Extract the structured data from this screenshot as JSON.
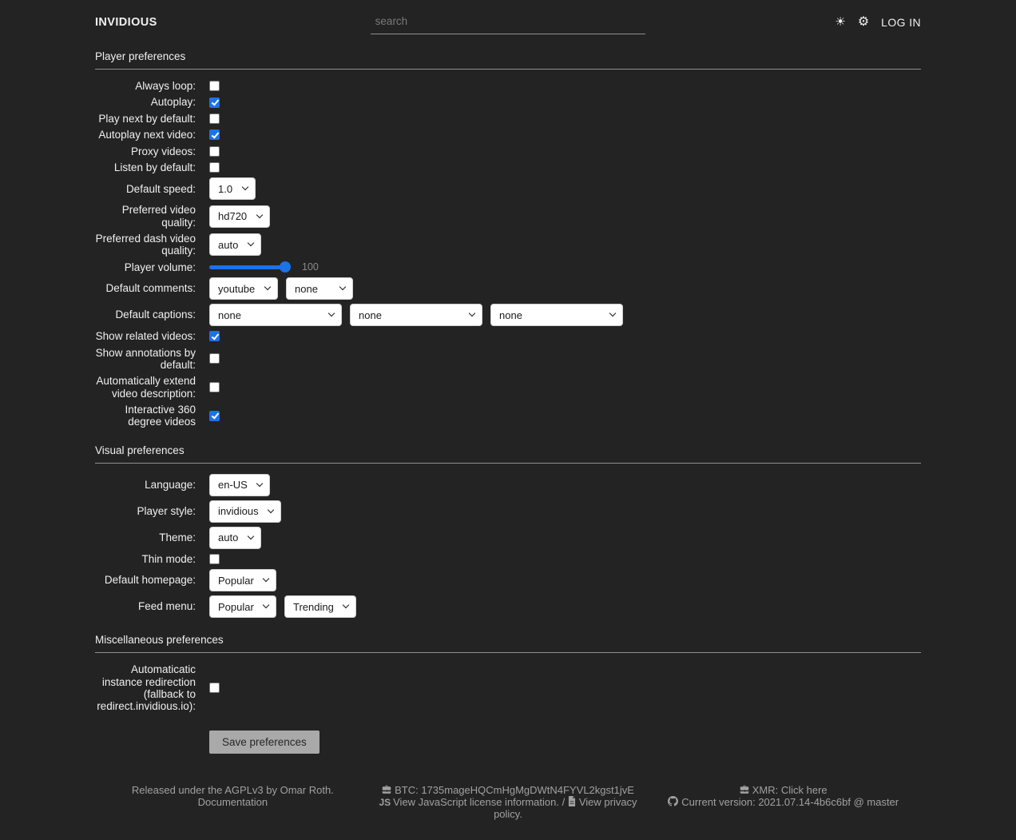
{
  "colors": {
    "background": "#232323",
    "text": "#f0f0f0",
    "muted_text": "#a1a1a1",
    "accent_blue": "#1a73e8",
    "control_bg": "#ffffff"
  },
  "header": {
    "logo": "INVIDIOUS",
    "search_placeholder": "search",
    "login_label": "LOG IN",
    "icons": {
      "theme_toggle": {
        "name": "sun-icon",
        "glyph": "☀"
      },
      "preferences": {
        "name": "gear-icon",
        "glyph": "⚙"
      }
    }
  },
  "sections": [
    {
      "id": "player",
      "heading": "Player preferences",
      "rows": [
        {
          "id": "always-loop",
          "label": "Always loop:",
          "type": "checkbox",
          "checked": false
        },
        {
          "id": "autoplay",
          "label": "Autoplay:",
          "type": "checkbox",
          "checked": true
        },
        {
          "id": "play-next",
          "label": "Play next by default:",
          "type": "checkbox",
          "checked": false
        },
        {
          "id": "autoplay-next",
          "label": "Autoplay next video:",
          "type": "checkbox",
          "checked": true
        },
        {
          "id": "proxy-videos",
          "label": "Proxy videos:",
          "type": "checkbox",
          "checked": false
        },
        {
          "id": "listen-default",
          "label": "Listen by default:",
          "type": "checkbox",
          "checked": false
        },
        {
          "id": "default-speed",
          "label": "Default speed:",
          "type": "selects",
          "values": [
            "1.0"
          ]
        },
        {
          "id": "preferred-quality",
          "label": "Preferred video quality:",
          "type": "selects",
          "values": [
            "hd720"
          ]
        },
        {
          "id": "preferred-dash-quality",
          "label": "Preferred dash video quality:",
          "type": "selects",
          "values": [
            "auto"
          ]
        },
        {
          "id": "player-volume",
          "label": "Player volume:",
          "type": "slider",
          "value": 100,
          "min": 0,
          "max": 100,
          "value_label": "100"
        },
        {
          "id": "default-comments",
          "label": "Default comments:",
          "type": "selects",
          "values": [
            "youtube",
            "none"
          ]
        },
        {
          "id": "default-captions",
          "label": "Default captions:",
          "type": "selects",
          "values": [
            "none",
            "none",
            "none"
          ]
        },
        {
          "id": "related-videos",
          "label": "Show related videos:",
          "type": "checkbox",
          "checked": true
        },
        {
          "id": "annotations",
          "label": "Show annotations by default:",
          "type": "checkbox",
          "checked": false
        },
        {
          "id": "extend-desc",
          "label": "Automatically extend video description:",
          "type": "checkbox",
          "checked": false
        },
        {
          "id": "vr-mode",
          "label": "Interactive 360 degree videos",
          "type": "checkbox",
          "checked": true
        }
      ]
    },
    {
      "id": "visual",
      "heading": "Visual preferences",
      "rows": [
        {
          "id": "language",
          "label": "Language:",
          "type": "selects",
          "values": [
            "en-US"
          ]
        },
        {
          "id": "player-style",
          "label": "Player style:",
          "type": "selects",
          "values": [
            "invidious"
          ]
        },
        {
          "id": "theme",
          "label": "Theme:",
          "type": "selects",
          "values": [
            "auto"
          ]
        },
        {
          "id": "thin-mode",
          "label": "Thin mode:",
          "type": "checkbox",
          "checked": false
        },
        {
          "id": "default-homepage",
          "label": "Default homepage:",
          "type": "selects",
          "values": [
            "Popular"
          ]
        },
        {
          "id": "feed-menu",
          "label": "Feed menu:",
          "type": "selects",
          "values": [
            "Popular",
            "Trending"
          ]
        }
      ]
    },
    {
      "id": "misc",
      "heading": "Miscellaneous preferences",
      "rows": [
        {
          "id": "auto-redirect",
          "label": "Automaticatic instance redirection (fallback to redirect.invidious.io):",
          "type": "checkbox",
          "checked": false
        }
      ]
    }
  ],
  "save_button": {
    "label": "Save preferences"
  },
  "footer": {
    "col1": {
      "line1": "Released under the AGPLv3 by Omar Roth.",
      "line2": "Documentation"
    },
    "col2": {
      "btc_line": "BTC: 1735mageHQCmHgMgDWtN4FYVL2kgst1jvE",
      "js_license_link": "View JavaScript license information.",
      "separator": " / ",
      "privacy_link": "View privacy policy."
    },
    "col3": {
      "xmr_label": "XMR: ",
      "xmr_link": "Click here",
      "version_label": "Current version: ",
      "version": "2021.07.14-4b6c6bf @ master"
    }
  }
}
